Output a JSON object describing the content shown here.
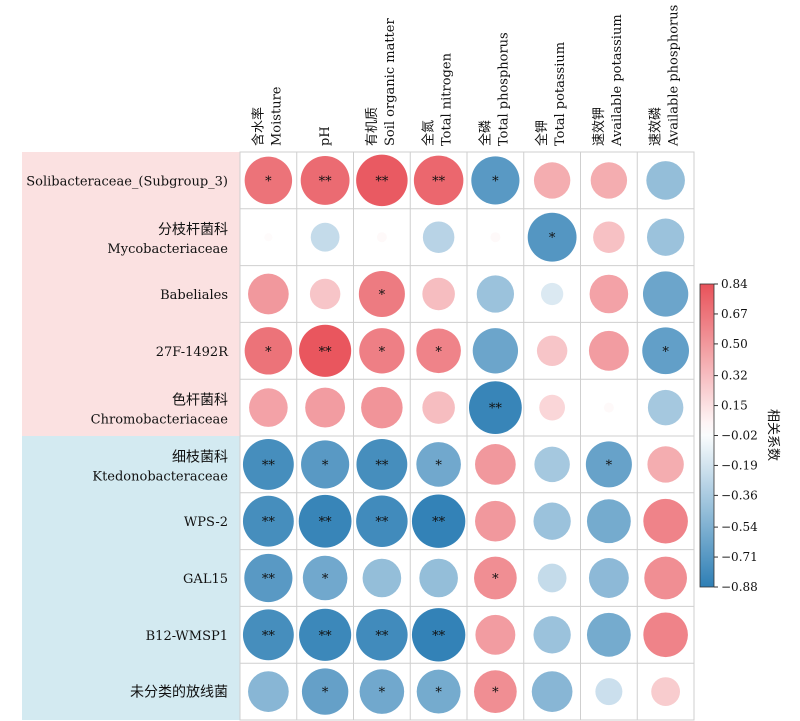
{
  "chart_data": {
    "type": "heatmap",
    "title": "",
    "columns": [
      {
        "zh": "含水率",
        "en": "Moisture"
      },
      {
        "zh": "",
        "en": "pH"
      },
      {
        "zh": "有机质",
        "en": "Soil organic matter"
      },
      {
        "zh": "全氮",
        "en": "Total nitrogen"
      },
      {
        "zh": "全磷",
        "en": "Total phosphorus"
      },
      {
        "zh": "全钾",
        "en": "Total potassium"
      },
      {
        "zh": "速效钾",
        "en": "Available potassium"
      },
      {
        "zh": "速效磷",
        "en": "Available phosphorus"
      }
    ],
    "rows": [
      {
        "zh": "",
        "en": "Solibacteraceae_(Subgroup_3)",
        "group": 0
      },
      {
        "zh": "分枝杆菌科",
        "en": "Mycobacteriaceae",
        "group": 0
      },
      {
        "zh": "",
        "en": "Babeliales",
        "group": 0
      },
      {
        "zh": "",
        "en": "27F-1492R",
        "group": 0
      },
      {
        "zh": "色杆菌科",
        "en": "Chromobacteriaceae",
        "group": 0
      },
      {
        "zh": "细枝菌科",
        "en": "Ktedonobacteraceae",
        "group": 1
      },
      {
        "zh": "",
        "en": "WPS-2",
        "group": 1
      },
      {
        "zh": "",
        "en": "GAL15",
        "group": 1
      },
      {
        "zh": "",
        "en": "B12-WMSP1",
        "group": 1
      },
      {
        "zh": "未分类的放线菌",
        "en": "",
        "group": 1
      }
    ],
    "values": [
      [
        0.68,
        0.72,
        0.8,
        0.74,
        -0.7,
        0.4,
        0.4,
        -0.45
      ],
      [
        0.02,
        -0.25,
        0.03,
        -0.3,
        0.03,
        -0.72,
        0.3,
        -0.42
      ],
      [
        0.5,
        0.28,
        0.64,
        0.32,
        -0.42,
        -0.15,
        0.45,
        -0.62
      ],
      [
        0.68,
        0.82,
        0.62,
        0.6,
        -0.62,
        0.28,
        0.48,
        -0.66
      ],
      [
        0.45,
        0.48,
        0.52,
        0.32,
        -0.84,
        0.2,
        0.03,
        -0.38
      ],
      [
        -0.78,
        -0.7,
        -0.78,
        -0.6,
        0.5,
        -0.38,
        -0.64,
        0.4
      ],
      [
        -0.78,
        -0.84,
        -0.8,
        -0.86,
        0.5,
        -0.42,
        -0.58,
        0.6
      ],
      [
        -0.7,
        -0.6,
        -0.45,
        -0.45,
        0.55,
        -0.25,
        -0.48,
        0.55
      ],
      [
        -0.78,
        -0.82,
        -0.8,
        -0.86,
        0.48,
        -0.42,
        -0.58,
        0.6
      ],
      [
        -0.5,
        -0.65,
        -0.6,
        -0.58,
        0.55,
        -0.5,
        -0.22,
        0.25
      ]
    ],
    "significance": [
      [
        "*",
        "**",
        "**",
        "**",
        "*",
        "",
        "",
        ""
      ],
      [
        "",
        "",
        "",
        "",
        "",
        "*",
        "",
        ""
      ],
      [
        "",
        "",
        "*",
        "",
        "",
        "",
        "",
        ""
      ],
      [
        "*",
        "**",
        "*",
        "*",
        "",
        "",
        "",
        "*"
      ],
      [
        "",
        "",
        "",
        "",
        "**",
        "",
        "",
        ""
      ],
      [
        "**",
        "*",
        "**",
        "*",
        "",
        "",
        "*",
        ""
      ],
      [
        "**",
        "**",
        "**",
        "**",
        "",
        "",
        "",
        ""
      ],
      [
        "**",
        "*",
        "",
        "",
        "*",
        "",
        "",
        ""
      ],
      [
        "**",
        "**",
        "**",
        "**",
        "",
        "",
        "",
        ""
      ],
      [
        "",
        "*",
        "*",
        "*",
        "*",
        "",
        "",
        ""
      ]
    ],
    "color_range": [
      -0.88,
      0.84
    ],
    "colorbar": {
      "label": "相关系数",
      "ticks": [
        "0.84",
        "0.67",
        "0.50",
        "0.32",
        "0.15",
        "−0.02",
        "−0.19",
        "−0.36",
        "−0.54",
        "−0.71",
        "−0.88"
      ],
      "tick_values": [
        0.84,
        0.67,
        0.5,
        0.32,
        0.15,
        -0.02,
        -0.19,
        -0.36,
        -0.54,
        -0.71,
        -0.88
      ]
    },
    "colors": {
      "positive": "#e8525a",
      "neutral": "#ffffff",
      "negative": "#2e7fb5",
      "group_bg": [
        "#fbe1e1",
        "#d3eaf1"
      ],
      "grid": "#cfcfcf"
    },
    "legend_position": "right"
  }
}
